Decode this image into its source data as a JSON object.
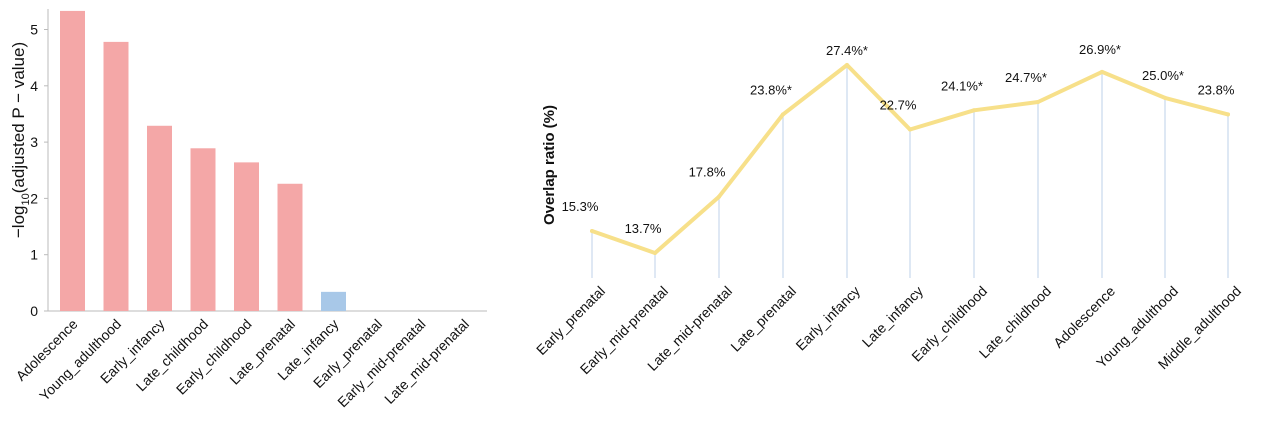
{
  "chart_data": [
    {
      "type": "bar",
      "ylabel_main": "−log",
      "ylabel_sub": "10",
      "ylabel_rest": "(adjusted P − value)",
      "ylim": [
        0,
        5.5
      ],
      "yticks": [
        "0",
        "1",
        "2",
        "3",
        "4",
        "5"
      ],
      "ytick_values": [
        0,
        1,
        2,
        3,
        4,
        5
      ],
      "categories": [
        "Adolescence",
        "Young_adulthood",
        "Early_infancy",
        "Late_childhood",
        "Early_childhood",
        "Late_prenatal",
        "Late_infancy",
        "Early_prenatal",
        "Early_mid-prenatal",
        "Late_mid-prenatal"
      ],
      "values": [
        5.33,
        4.78,
        3.29,
        2.89,
        2.64,
        2.26,
        0.34,
        0,
        0,
        0
      ],
      "bar_colors": [
        "#f4a7a7",
        "#f4a7a7",
        "#f4a7a7",
        "#f4a7a7",
        "#f4a7a7",
        "#f4a7a7",
        "#a8c8e8",
        "#f4a7a7",
        "#f4a7a7",
        "#f4a7a7"
      ],
      "grid": false
    },
    {
      "type": "line",
      "ylabel": "Overlap ratio (%)",
      "categories": [
        "Early_prenatal",
        "Early_mid-prenatal",
        "Late_mid-prenatal",
        "Late_prenatal",
        "Early_infancy",
        "Late_infancy",
        "Early_childhood",
        "Late_childhood",
        "Adolescence",
        "Young_adulthood",
        "Middle_adulthood"
      ],
      "values": [
        15.3,
        13.7,
        17.8,
        23.8,
        27.4,
        22.7,
        24.1,
        24.7,
        26.9,
        25.0,
        23.8
      ],
      "data_labels": [
        "15.3%",
        "13.7%",
        "17.8%",
        "23.8%*",
        "27.4%*",
        "22.7%",
        "24.1%*",
        "24.7%*",
        "26.9%*",
        "25.0%*",
        "23.8%"
      ],
      "line_color": "#f7e08a",
      "drop_line_color": "#c9d9ec",
      "ylim": [
        11.2,
        28.8
      ],
      "grid": false
    }
  ]
}
